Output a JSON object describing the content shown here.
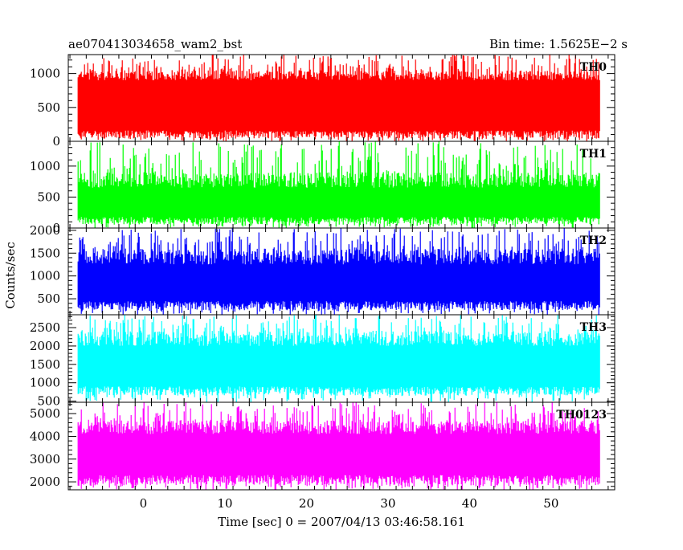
{
  "header": {
    "title": "ae070413034658_wam2_bst",
    "bin_time": "Bin time: 1.5625E−2 s"
  },
  "chart_data": {
    "type": "line",
    "title": "ae070413034658_wam2_bst",
    "xlabel": "Time [sec] 0 = 2007/04/13 03:46:58.161",
    "ylabel": "Counts/sec",
    "xlim": [
      -9.2,
      57.8
    ],
    "x_data_range": [
      -8,
      56
    ],
    "x_ticks": [
      0,
      10,
      20,
      30,
      40,
      50
    ],
    "grid": false,
    "panels": [
      {
        "name": "TH0",
        "color": "#ff0000",
        "ylim": [
          0,
          1280
        ],
        "y_ticks": [
          0,
          500,
          1000
        ],
        "band_low": [
          40,
          160
        ],
        "band_high": [
          900,
          1050
        ],
        "spike_high": 1280,
        "spike_low": 0
      },
      {
        "name": "TH1",
        "color": "#00ff00",
        "ylim": [
          0,
          1400
        ],
        "y_ticks": [
          0,
          500,
          1000
        ],
        "band_low": [
          60,
          180
        ],
        "band_high": [
          650,
          900
        ],
        "spike_high": 1400,
        "spike_low": 0
      },
      {
        "name": "TH2",
        "color": "#0000ff",
        "ylim": [
          150,
          2050
        ],
        "y_ticks": [
          500,
          1000,
          1500,
          2000
        ],
        "band_low": [
          250,
          450
        ],
        "band_high": [
          1250,
          1600
        ],
        "spike_high": 2050,
        "spike_low": 150
      },
      {
        "name": "TH3",
        "color": "#00ffff",
        "ylim": [
          470,
          2850
        ],
        "y_ticks": [
          500,
          1000,
          1500,
          2000,
          2500
        ],
        "band_low": [
          650,
          900
        ],
        "band_high": [
          2000,
          2400
        ],
        "spike_high": 2850,
        "spike_low": 470
      },
      {
        "name": "TH0123",
        "color": "#ff00ff",
        "ylim": [
          1650,
          5500
        ],
        "y_ticks": [
          2000,
          3000,
          4000,
          5000
        ],
        "band_low": [
          1850,
          2300
        ],
        "band_high": [
          4100,
          4700
        ],
        "spike_high": 5500,
        "spike_low": 1650
      }
    ]
  }
}
